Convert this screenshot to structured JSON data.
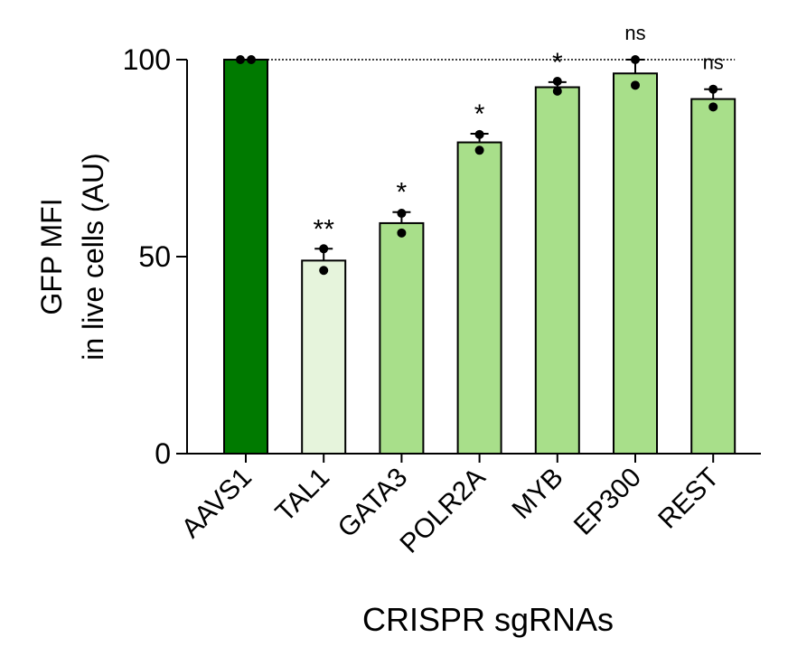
{
  "chart_data": {
    "type": "bar",
    "title": "",
    "categories": [
      "AAVS1",
      "TAL1",
      "GATA3",
      "POLR2A",
      "MYB",
      "EP300",
      "REST"
    ],
    "values": [
      100,
      49,
      58.5,
      79,
      93,
      96.5,
      90
    ],
    "errors": [
      0,
      3,
      2.8,
      2.2,
      1.3,
      3.5,
      2.5
    ],
    "points": [
      [
        100,
        100
      ],
      [
        52,
        46.5
      ],
      [
        61,
        56
      ],
      [
        81,
        77
      ],
      [
        94.5,
        92
      ],
      [
        100,
        93.5
      ],
      [
        92.5,
        88
      ]
    ],
    "significance": [
      "",
      "**",
      "*",
      "*",
      "*",
      "ns",
      "ns"
    ],
    "bar_colors": [
      "#007a00",
      "#e6f4dc",
      "#a8df8a",
      "#a8df8a",
      "#a8df8a",
      "#a8df8a",
      "#a8df8a"
    ],
    "reference_line": 100,
    "ylabel_line1": "GFP MFI",
    "ylabel_line2": "in live cells (AU)",
    "xlabel": "CRISPR sgRNAs",
    "ylim": [
      0,
      100
    ],
    "yticks": [
      0,
      50,
      100
    ],
    "grid": false,
    "legend": "none"
  }
}
